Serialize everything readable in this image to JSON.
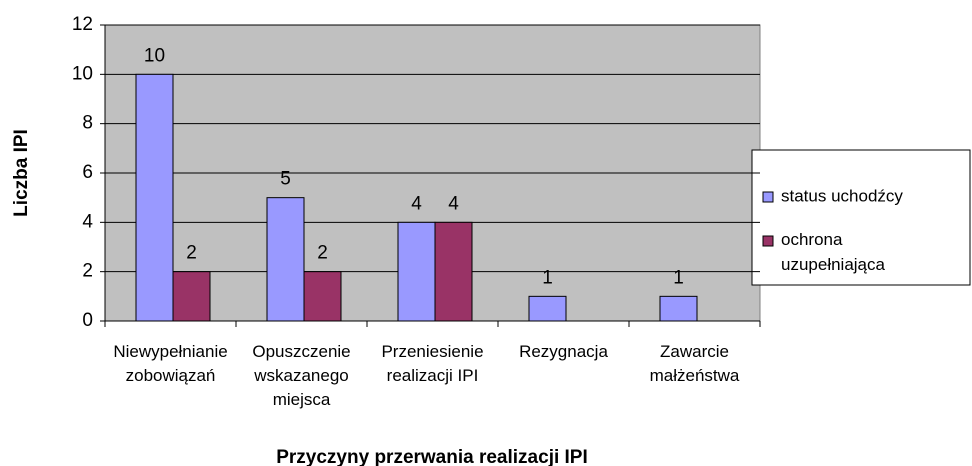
{
  "chart_data": {
    "type": "bar",
    "x_label": "Przyczyny przerwania realizacji IPI",
    "y_label": "Liczba IPI",
    "categories": [
      "Niewypełnianie\nzobowiązań",
      "Opuszczenie\nwskazanego\nmiejsca",
      "Przeniesienie\nrealizacji IPI",
      "Rezygnacja",
      "Zawarcie\nmałżeństwa"
    ],
    "series": [
      {
        "name": "status uchodźcy",
        "color": "#9999ff",
        "values": [
          10,
          5,
          4,
          1,
          1
        ]
      },
      {
        "name": "ochrona uzupełniająca",
        "color": "#993366",
        "values": [
          2,
          2,
          4,
          null,
          null
        ]
      }
    ],
    "ylim": [
      0,
      12
    ],
    "yticks": [
      0,
      2,
      4,
      6,
      8,
      10,
      12
    ],
    "grid": true,
    "legend": "right"
  }
}
